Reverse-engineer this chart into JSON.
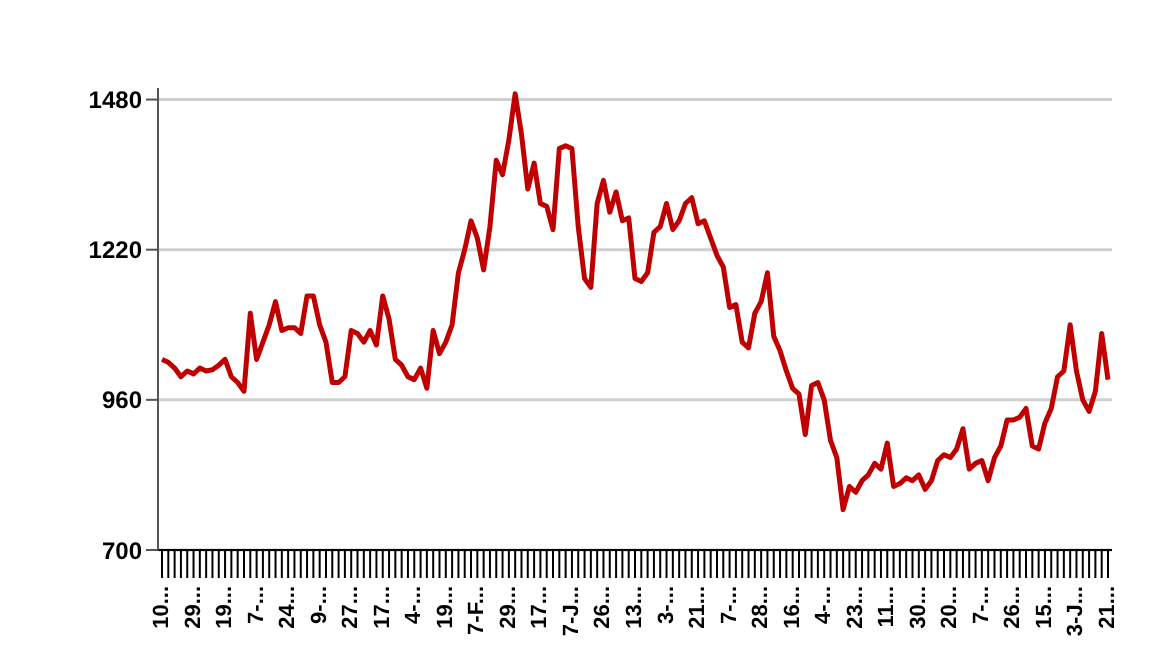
{
  "chart_data": {
    "type": "line",
    "categories": [
      "10...",
      null,
      null,
      null,
      null,
      "29...",
      null,
      null,
      null,
      null,
      "19...",
      null,
      null,
      null,
      null,
      "7-...",
      null,
      null,
      null,
      null,
      "24...",
      null,
      null,
      null,
      null,
      "9-...",
      null,
      null,
      null,
      null,
      "27...",
      null,
      null,
      null,
      null,
      "17...",
      null,
      null,
      null,
      null,
      "4-...",
      null,
      null,
      null,
      null,
      "19...",
      null,
      null,
      null,
      null,
      "7-F...",
      null,
      null,
      null,
      null,
      "29...",
      null,
      null,
      null,
      null,
      "17...",
      null,
      null,
      null,
      null,
      "7-J...",
      null,
      null,
      null,
      null,
      "26...",
      null,
      null,
      null,
      null,
      "13...",
      null,
      null,
      null,
      null,
      "3-...",
      null,
      null,
      null,
      null,
      "21...",
      null,
      null,
      null,
      null,
      "7-...",
      null,
      null,
      null,
      null,
      "28...",
      null,
      null,
      null,
      null,
      "16...",
      null,
      null,
      null,
      null,
      "4-...",
      null,
      null,
      null,
      null,
      "23...",
      null,
      null,
      null,
      null,
      "11...",
      null,
      null,
      null,
      null,
      "30...",
      null,
      null,
      null,
      null,
      "20...",
      null,
      null,
      null,
      null,
      "7-...",
      null,
      null,
      null,
      null,
      "26...",
      null,
      null,
      null,
      null,
      "15...",
      null,
      null,
      null,
      null,
      "3-J...",
      null,
      null,
      null,
      null,
      "21..."
    ],
    "series": [
      {
        "color": "#c00000",
        "values": [
          1030,
          1025,
          1015,
          1000,
          1010,
          1005,
          1015,
          1010,
          1012,
          1020,
          1030,
          1000,
          990,
          975,
          1110,
          1030,
          1060,
          1090,
          1130,
          1080,
          1085,
          1085,
          1075,
          1140,
          1140,
          1090,
          1060,
          990,
          990,
          1000,
          1080,
          1075,
          1060,
          1080,
          1055,
          1140,
          1100,
          1030,
          1020,
          1000,
          995,
          1015,
          980,
          1080,
          1040,
          1060,
          1090,
          1180,
          1220,
          1270,
          1240,
          1185,
          1260,
          1375,
          1350,
          1410,
          1490,
          1420,
          1325,
          1370,
          1300,
          1295,
          1255,
          1395,
          1400,
          1395,
          1260,
          1170,
          1155,
          1300,
          1340,
          1285,
          1320,
          1270,
          1275,
          1170,
          1165,
          1180,
          1250,
          1260,
          1300,
          1255,
          1270,
          1300,
          1310,
          1265,
          1270,
          1240,
          1210,
          1190,
          1120,
          1125,
          1060,
          1050,
          1110,
          1130,
          1180,
          1070,
          1045,
          1010,
          980,
          970,
          900,
          985,
          990,
          960,
          890,
          860,
          770,
          810,
          800,
          820,
          830,
          850,
          840,
          885,
          810,
          815,
          825,
          820,
          830,
          805,
          820,
          855,
          865,
          860,
          875,
          910,
          840,
          850,
          855,
          820,
          860,
          880,
          925,
          925,
          930,
          945,
          880,
          875,
          920,
          945,
          1000,
          1010,
          1090,
          1010,
          960,
          940,
          975,
          1075,
          995
        ]
      }
    ],
    "ylim": [
      700,
      1500
    ],
    "yticks": [
      700,
      960,
      1220,
      1480
    ],
    "grid": "y",
    "marker": "none",
    "line_style": "solid"
  }
}
